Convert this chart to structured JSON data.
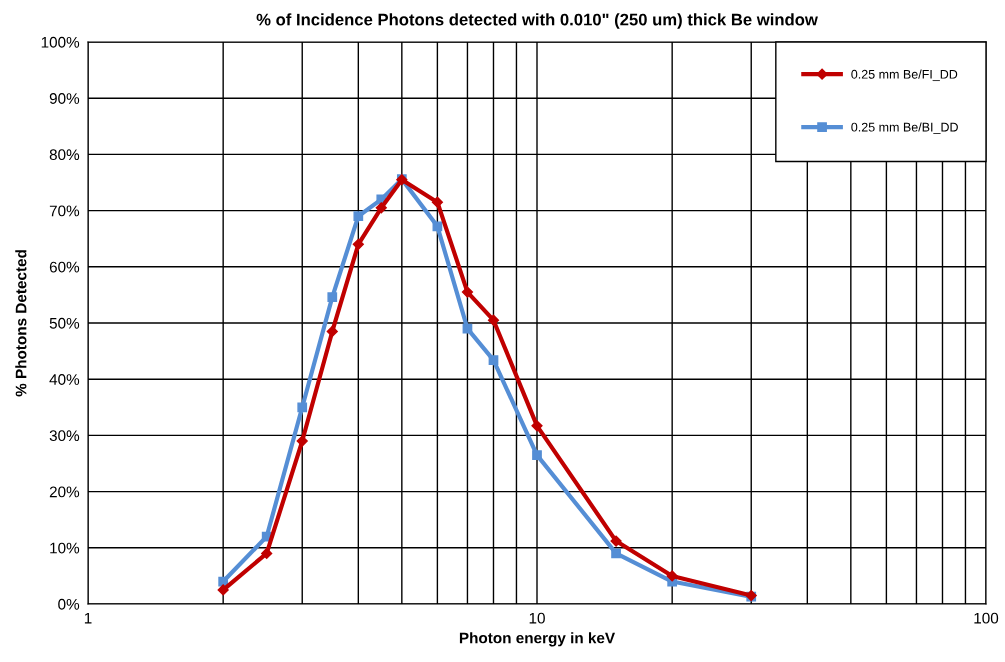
{
  "chart_data": {
    "type": "line",
    "title": "% of Incidence Photons detected with 0.010\" (250 um) thick Be window",
    "xlabel": "Photon energy in keV",
    "ylabel": "% Photons Detected",
    "log": "x",
    "grid": true,
    "legend": "top right",
    "xlim": [
      1,
      100
    ],
    "xticks": [
      1,
      {
        "value": 2,
        "label": null
      },
      {
        "value": 3,
        "label": null
      },
      {
        "value": 4,
        "label": null
      },
      {
        "value": 5,
        "label": null
      },
      {
        "value": 6,
        "label": null
      },
      {
        "value": 7,
        "label": null
      },
      {
        "value": 8,
        "label": null
      },
      {
        "value": 9,
        "label": null
      },
      10,
      {
        "value": 20,
        "label": null
      },
      {
        "value": 30,
        "label": null
      },
      {
        "value": 40,
        "label": null
      },
      {
        "value": 50,
        "label": null
      },
      {
        "value": 60,
        "label": null
      },
      {
        "value": 70,
        "label": null
      },
      {
        "value": 80,
        "label": null
      },
      {
        "value": 90,
        "label": null
      },
      100
    ],
    "ylim": [
      0,
      100
    ],
    "yticks": [
      {
        "value": 0,
        "label": "0%"
      },
      {
        "value": 10,
        "label": "10%"
      },
      {
        "value": 20,
        "label": "20%"
      },
      {
        "value": 30,
        "label": "30%"
      },
      {
        "value": 40,
        "label": "40%"
      },
      {
        "value": 50,
        "label": "50%"
      },
      {
        "value": 60,
        "label": "60%"
      },
      {
        "value": 70,
        "label": "70%"
      },
      {
        "value": 80,
        "label": "80%"
      },
      {
        "value": 90,
        "label": "90%"
      },
      {
        "value": 100,
        "label": "100%"
      }
    ],
    "x": [
      2,
      2.5,
      3,
      3.5,
      4,
      4.5,
      5,
      6,
      7,
      8,
      10,
      15,
      20,
      30
    ],
    "series": [
      {
        "name": "0.25 mm Be/FI_DD",
        "color": "#c00000",
        "marker": "diamond",
        "values": [
          2.5,
          9,
          29,
          48.5,
          64,
          70.5,
          75.5,
          71.5,
          55.5,
          50.5,
          31.7,
          11.2,
          5,
          1.5
        ]
      },
      {
        "name": "0.25 mm Be/BI_DD",
        "color": "#558ed5",
        "marker": "square",
        "values": [
          4,
          12,
          35,
          54.6,
          69,
          72,
          75.6,
          67.2,
          49,
          43.4,
          26.5,
          9,
          4,
          1.3
        ]
      }
    ]
  }
}
